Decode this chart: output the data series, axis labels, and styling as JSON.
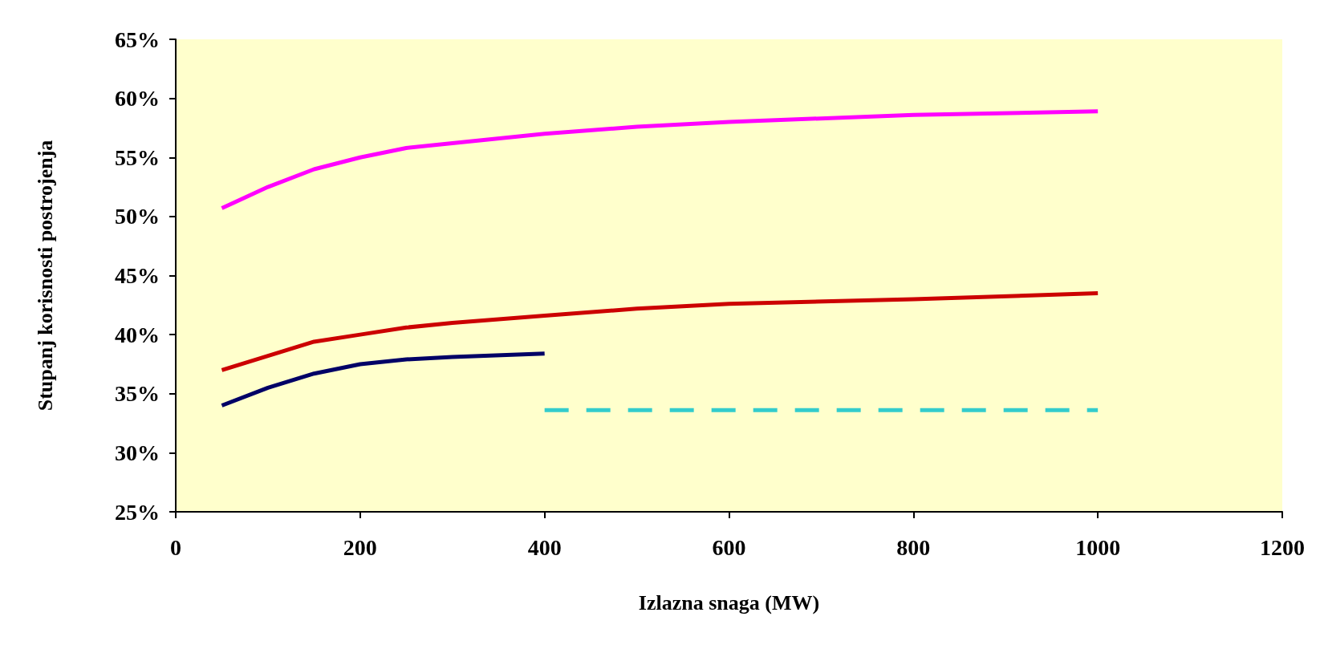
{
  "chart_data": {
    "type": "line",
    "xlabel": "Izlazna snaga (MW)",
    "ylabel": "Stupanj korisnosti postrojenja",
    "xlim": [
      0,
      1200
    ],
    "xticks": [
      0,
      200,
      400,
      600,
      800,
      1000,
      1200
    ],
    "ylim": [
      25,
      65
    ],
    "yticks": [
      {
        "value": 25,
        "label": "25%"
      },
      {
        "value": 30,
        "label": "30%"
      },
      {
        "value": 35,
        "label": "35%"
      },
      {
        "value": 40,
        "label": "40%"
      },
      {
        "value": 45,
        "label": "45%"
      },
      {
        "value": 50,
        "label": "50%"
      },
      {
        "value": 55,
        "label": "55%"
      },
      {
        "value": 60,
        "label": "60%"
      },
      {
        "value": 65,
        "label": "65%"
      }
    ],
    "grid": false,
    "marker": "none",
    "series": [
      {
        "color": "#ff00ff",
        "x": [
          50,
          100,
          150,
          200,
          250,
          300,
          400,
          500,
          600,
          800,
          1000
        ],
        "values": [
          50.7,
          52.5,
          54,
          55,
          55.8,
          56.2,
          57,
          57.6,
          58,
          58.6,
          58.9
        ]
      },
      {
        "color": "#cc0000",
        "x": [
          50,
          100,
          150,
          200,
          250,
          300,
          400,
          500,
          600,
          800,
          1000
        ],
        "values": [
          37,
          38.2,
          39.4,
          40,
          40.6,
          41,
          41.6,
          42.2,
          42.6,
          43,
          43.5
        ]
      },
      {
        "color": "#000066",
        "x": [
          50,
          100,
          150,
          200,
          250,
          300,
          400
        ],
        "values": [
          34,
          35.5,
          36.7,
          37.5,
          37.9,
          38.1,
          38.4
        ]
      },
      {
        "color": "#33cccc",
        "line_style": "dashed",
        "x": [
          400,
          1000
        ],
        "values": [
          33.6,
          33.6
        ]
      }
    ]
  }
}
